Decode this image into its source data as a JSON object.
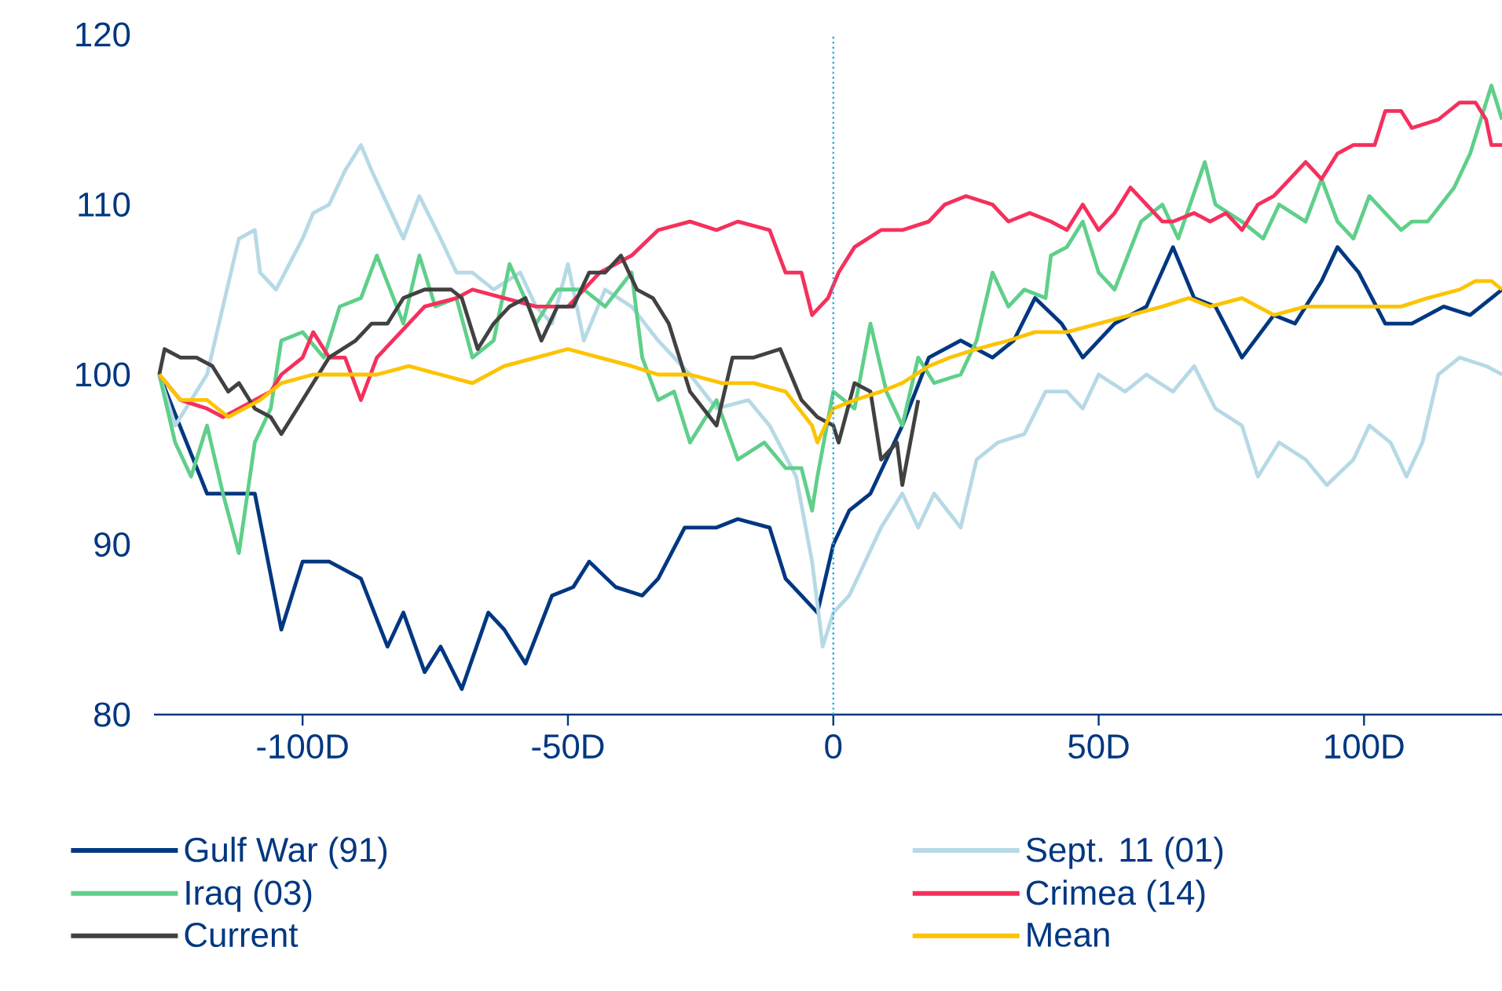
{
  "chart_data": {
    "type": "line",
    "xlim": [
      -128,
      126
    ],
    "ylim": [
      80,
      120
    ],
    "xticks": [
      {
        "value": -100,
        "label": "-100D"
      },
      {
        "value": -50,
        "label": "-50D"
      },
      0,
      {
        "value": 50,
        "label": "50D"
      },
      {
        "value": 100,
        "label": "100D"
      }
    ],
    "yticks": [
      80,
      90,
      100,
      110,
      120
    ],
    "legend": "bottom",
    "line_style": "solid",
    "ref_lines": [
      {
        "axis": "x",
        "value": 0,
        "color": "#29a8e0",
        "line_style": "dotted"
      }
    ],
    "series": [
      {
        "name": "Gulf War (91)",
        "color": "#003781",
        "x": [
          -127,
          -118,
          -109,
          -104,
          -100,
          -95,
          -89,
          -84,
          -81,
          -77,
          -74,
          -70,
          -65,
          -62,
          -58,
          -53,
          -49,
          -46,
          -41,
          -36,
          -33,
          -28,
          -22,
          -18,
          -12,
          -9,
          -6,
          -3,
          0,
          3,
          7,
          13,
          18,
          24,
          30,
          34,
          38,
          43,
          47,
          53,
          59,
          64,
          68,
          72,
          77,
          83,
          87,
          92,
          95,
          99,
          104,
          109,
          115,
          120,
          124,
          126
        ],
        "values": [
          100,
          93,
          93,
          85,
          89,
          89,
          88,
          84,
          86,
          82.5,
          84,
          81.5,
          86,
          85,
          83,
          87,
          87.5,
          89,
          87.5,
          87,
          88,
          91,
          91,
          91.5,
          91,
          88,
          87,
          86,
          90,
          92,
          93,
          97,
          101,
          102,
          101,
          102,
          104.5,
          103,
          101,
          103,
          104,
          107.5,
          104.5,
          104,
          101,
          103.5,
          103,
          105.5,
          107.5,
          106,
          103,
          103,
          104,
          103.5,
          104.5,
          105
        ]
      },
      {
        "name": "Sept. 11 (01)",
        "color": "#b6d9e6",
        "x": [
          -127,
          -124,
          -118,
          -112,
          -109,
          -108,
          -105,
          -100,
          -98,
          -95,
          -92,
          -89,
          -87,
          -84,
          -81,
          -78,
          -74,
          -71,
          -68,
          -64,
          -59,
          -56,
          -53,
          -50,
          -47,
          -43,
          -38,
          -33,
          -27,
          -22,
          -16,
          -12,
          -7,
          -4,
          -2,
          0,
          3,
          6,
          9,
          13,
          16,
          19,
          24,
          27,
          31,
          36,
          40,
          44,
          47,
          50,
          55,
          59,
          64,
          68,
          72,
          77,
          80,
          84,
          89,
          93,
          98,
          101,
          105,
          108,
          111,
          114,
          118,
          123,
          126
        ],
        "values": [
          100,
          97,
          100,
          108,
          108.5,
          106,
          105,
          108,
          109.5,
          110,
          112,
          113.5,
          112,
          110,
          108,
          110.5,
          108,
          106,
          106,
          105,
          106,
          104,
          103,
          106.5,
          102,
          105,
          104,
          102,
          100,
          98,
          98.5,
          97,
          94,
          89,
          84,
          86,
          87,
          89,
          91,
          93,
          91,
          93,
          91,
          95,
          96,
          96.5,
          99,
          99,
          98,
          100,
          99,
          100,
          99,
          100.5,
          98,
          97,
          94,
          96,
          95,
          93.5,
          95,
          97,
          96,
          94,
          96,
          100,
          101,
          100.5,
          100
        ]
      },
      {
        "name": "Iraq (03)",
        "color": "#5fcf8a",
        "x": [
          -127,
          -124,
          -121,
          -118,
          -115,
          -112,
          -109,
          -106,
          -104,
          -100,
          -96,
          -93,
          -89,
          -86,
          -81,
          -78,
          -75,
          -71,
          -68,
          -64,
          -61,
          -56,
          -52,
          -47,
          -43,
          -38,
          -36,
          -33,
          -30,
          -27,
          -22,
          -18,
          -13,
          -9,
          -6,
          -4,
          -3,
          0,
          4,
          7,
          10,
          13,
          16,
          19,
          24,
          27,
          30,
          33,
          36,
          40,
          41,
          44,
          47,
          50,
          53,
          58,
          62,
          65,
          70,
          72,
          77,
          81,
          84,
          89,
          92,
          95,
          98,
          101,
          104,
          107,
          109,
          112,
          117,
          120,
          123,
          124,
          126
        ],
        "values": [
          100,
          96,
          94,
          97,
          93,
          89.5,
          96,
          98,
          102,
          102.5,
          101,
          104,
          104.5,
          107,
          103,
          107,
          104,
          104.5,
          101,
          102,
          106.5,
          103,
          105,
          105,
          104,
          106,
          101,
          98.5,
          99,
          96,
          98.5,
          95,
          96,
          94.5,
          94.5,
          92,
          94,
          99,
          98,
          103,
          99,
          97,
          101,
          99.5,
          100,
          102,
          106,
          104,
          105,
          104.5,
          107,
          107.5,
          109,
          106,
          105,
          109,
          110,
          108,
          112.5,
          110,
          109,
          108,
          110,
          109,
          111.5,
          109,
          108,
          110.5,
          109.5,
          108.5,
          109,
          109,
          111,
          113,
          116,
          117,
          115
        ]
      },
      {
        "name": "Crimea (14)",
        "color": "#f5305c",
        "x": [
          -127,
          -123,
          -118,
          -115,
          -112,
          -106,
          -104,
          -100,
          -98,
          -95,
          -92,
          -89,
          -86,
          -83,
          -80,
          -77,
          -71,
          -68,
          -62,
          -56,
          -50,
          -44,
          -38,
          -33,
          -27,
          -22,
          -18,
          -12,
          -9,
          -6,
          -4,
          -1,
          1,
          4,
          9,
          13,
          18,
          21,
          25,
          30,
          33,
          37,
          41,
          44,
          47,
          50,
          53,
          56,
          59,
          62,
          64,
          68,
          71,
          74,
          77,
          80,
          83,
          86,
          89,
          92,
          95,
          98,
          102,
          104,
          107,
          109,
          114,
          118,
          121,
          123,
          124,
          126
        ],
        "values": [
          100,
          98.5,
          98,
          97.5,
          98,
          99,
          100,
          101,
          102.5,
          101,
          101,
          98.5,
          101,
          102,
          103,
          104,
          104.5,
          105,
          104.5,
          104,
          104,
          106,
          107,
          108.5,
          109,
          108.5,
          109,
          108.5,
          106,
          106,
          103.5,
          104.5,
          106,
          107.5,
          108.5,
          108.5,
          109,
          110,
          110.5,
          110,
          109,
          109.5,
          109,
          108.5,
          110,
          108.5,
          109.5,
          111,
          110,
          109,
          109,
          109.5,
          109,
          109.5,
          108.5,
          110,
          110.5,
          111.5,
          112.5,
          111.5,
          113,
          113.5,
          113.5,
          115.5,
          115.5,
          114.5,
          115,
          116,
          116,
          115,
          113.5,
          113.5
        ]
      },
      {
        "name": "Current",
        "color": "#414141",
        "x": [
          -127,
          -126,
          -123,
          -120,
          -117,
          -114,
          -112,
          -109,
          -106,
          -104,
          -100,
          -98,
          -95,
          -90,
          -87,
          -84,
          -81,
          -77,
          -72,
          -70,
          -67,
          -64,
          -61,
          -58,
          -55,
          -52,
          -49,
          -46,
          -43,
          -40,
          -37,
          -34,
          -31,
          -27,
          -22,
          -19,
          -15,
          -10,
          -6,
          -3,
          0,
          1,
          4,
          7,
          9,
          12,
          13,
          16
        ],
        "values": [
          100,
          101.5,
          101,
          101,
          100.5,
          99,
          99.5,
          98,
          97.5,
          96.5,
          98.5,
          99.5,
          101,
          102,
          103,
          103,
          104.5,
          105,
          105,
          104.5,
          101.5,
          103,
          104,
          104.5,
          102,
          104,
          104,
          106,
          106,
          107,
          105,
          104.5,
          103,
          99,
          97,
          101,
          101,
          101.5,
          98.5,
          97.5,
          97,
          96,
          99.5,
          99,
          95,
          96,
          93.5,
          98.5
        ]
      },
      {
        "name": "Mean",
        "color": "#fdc300",
        "x": [
          -127,
          -123,
          -118,
          -114,
          -108,
          -104,
          -98,
          -92,
          -86,
          -80,
          -74,
          -68,
          -62,
          -56,
          -50,
          -44,
          -38,
          -33,
          -27,
          -21,
          -15,
          -9,
          -4,
          -3,
          0,
          4,
          9,
          13,
          18,
          22,
          27,
          33,
          38,
          44,
          50,
          56,
          62,
          67,
          71,
          77,
          83,
          89,
          95,
          101,
          107,
          112,
          118,
          121,
          124,
          126
        ],
        "values": [
          100,
          98.5,
          98.5,
          97.5,
          98.5,
          99.5,
          100,
          100,
          100,
          100.5,
          100,
          99.5,
          100.5,
          101,
          101.5,
          101,
          100.5,
          100,
          100,
          99.5,
          99.5,
          99,
          97,
          96,
          98,
          98.5,
          99,
          99.5,
          100.5,
          101,
          101.5,
          102,
          102.5,
          102.5,
          103,
          103.5,
          104,
          104.5,
          104,
          104.5,
          103.5,
          104,
          104,
          104,
          104,
          104.5,
          105,
          105.5,
          105.5,
          105
        ]
      }
    ]
  }
}
